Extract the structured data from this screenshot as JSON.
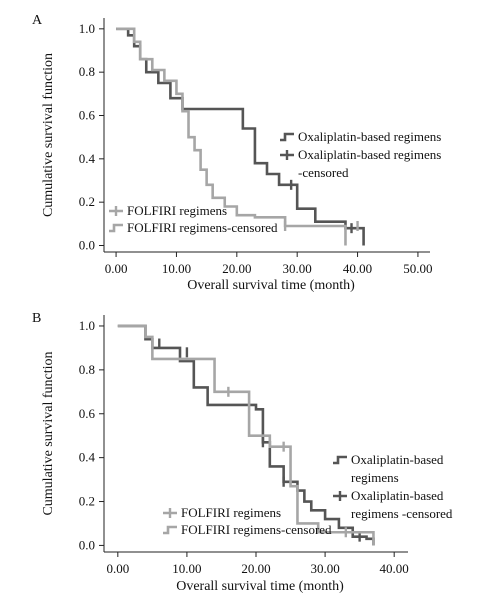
{
  "chart_data": [
    {
      "panel_label": "A",
      "type": "line",
      "step": true,
      "xlabel": "Overall survival time (month)",
      "ylabel": "Cumulative survival function",
      "xlim": [
        -2,
        52
      ],
      "ylim": [
        -0.03,
        1.05
      ],
      "xticks": [
        0,
        10,
        20,
        30,
        40,
        50
      ],
      "xtick_labels": [
        "0.00",
        "10.00",
        "20.00",
        "30.00",
        "40.00",
        "50.00"
      ],
      "yticks": [
        0,
        0.2,
        0.4,
        0.6,
        0.8,
        1.0
      ],
      "ytick_labels": [
        "0.0",
        "0.2",
        "0.4",
        "0.6",
        "0.8",
        "1.0"
      ],
      "grid": false,
      "legends": [
        {
          "placement": "right",
          "entries": [
            {
              "lines": [
                "Oxaliplatin-based regimens"
              ],
              "color": "#555555",
              "marker": "step"
            },
            {
              "lines": [
                "Oxaliplatin-based regimens",
                "-censored"
              ],
              "color": "#555555",
              "marker": "plus"
            }
          ]
        },
        {
          "placement": "bottom-left",
          "entries": [
            {
              "lines": [
                "FOLFIRI regimens"
              ],
              "color": "#a6a6a6",
              "marker": "plus"
            },
            {
              "lines": [
                "FOLFIRI regimens-censored"
              ],
              "color": "#a6a6a6",
              "marker": "step"
            }
          ]
        }
      ],
      "series": [
        {
          "name": "Oxaliplatin-based regimens",
          "color": "#555555",
          "x": [
            0,
            2,
            3,
            4,
            5,
            7,
            9,
            11,
            13,
            21,
            23,
            25,
            27,
            30,
            33,
            38,
            41
          ],
          "y": [
            1.0,
            0.97,
            0.92,
            0.86,
            0.8,
            0.75,
            0.68,
            0.63,
            0.63,
            0.54,
            0.38,
            0.33,
            0.28,
            0.17,
            0.11,
            0.08,
            0.0
          ],
          "censored": [
            [
              29,
              0.28
            ],
            [
              39,
              0.08
            ]
          ]
        },
        {
          "name": "FOLFIRI regimens",
          "color": "#a6a6a6",
          "x": [
            0,
            3,
            4,
            6,
            8,
            10,
            11,
            12,
            13,
            14,
            15,
            16,
            18,
            20,
            23,
            28,
            38
          ],
          "y": [
            1.0,
            0.94,
            0.86,
            0.81,
            0.76,
            0.7,
            0.62,
            0.5,
            0.44,
            0.35,
            0.28,
            0.22,
            0.18,
            0.14,
            0.13,
            0.09,
            0.0
          ],
          "censored": [
            [
              28,
              0.09
            ],
            [
              40,
              0.09
            ]
          ]
        }
      ]
    },
    {
      "panel_label": "B",
      "type": "line",
      "step": true,
      "xlabel": "Overall survival time (month)",
      "ylabel": "Cumulative survival function",
      "xlim": [
        -2,
        42
      ],
      "ylim": [
        -0.03,
        1.05
      ],
      "xticks": [
        0,
        10,
        20,
        30,
        40
      ],
      "xtick_labels": [
        "0.00",
        "10.00",
        "20.00",
        "30.00",
        "40.00"
      ],
      "yticks": [
        0,
        0.2,
        0.4,
        0.6,
        0.8,
        1.0
      ],
      "ytick_labels": [
        "0.0",
        "0.2",
        "0.4",
        "0.6",
        "0.8",
        "1.0"
      ],
      "grid": false,
      "legends": [
        {
          "placement": "right",
          "entries": [
            {
              "lines": [
                "Oxaliplatin-based",
                "regimens"
              ],
              "color": "#555555",
              "marker": "step"
            },
            {
              "lines": [
                "Oxaliplatin-based",
                "regimens -censored"
              ],
              "color": "#555555",
              "marker": "plus"
            }
          ]
        },
        {
          "placement": "bottom-left",
          "entries": [
            {
              "lines": [
                "FOLFIRI regimens"
              ],
              "color": "#a6a6a6",
              "marker": "plus"
            },
            {
              "lines": [
                "FOLFIRI regimens-censored"
              ],
              "color": "#a6a6a6",
              "marker": "step"
            }
          ]
        }
      ],
      "series": [
        {
          "name": "Oxaliplatin-based regimens",
          "color": "#555555",
          "x": [
            0,
            4,
            5,
            9,
            11,
            13,
            20,
            21,
            22,
            24,
            26,
            27,
            28,
            30,
            32,
            34,
            36,
            37
          ],
          "y": [
            1.0,
            0.94,
            0.9,
            0.84,
            0.72,
            0.64,
            0.62,
            0.47,
            0.36,
            0.29,
            0.25,
            0.2,
            0.16,
            0.12,
            0.08,
            0.04,
            0.03,
            0.0
          ],
          "censored": [
            [
              6,
              0.92
            ],
            [
              10,
              0.88
            ],
            [
              21,
              0.47
            ],
            [
              24,
              0.29
            ],
            [
              35,
              0.04
            ]
          ]
        },
        {
          "name": "FOLFIRI regimens",
          "color": "#a6a6a6",
          "x": [
            0,
            4,
            5,
            12,
            14,
            18,
            19,
            21,
            22,
            25,
            26,
            29,
            37
          ],
          "y": [
            1.0,
            0.95,
            0.85,
            0.85,
            0.7,
            0.7,
            0.5,
            0.5,
            0.45,
            0.27,
            0.1,
            0.06,
            0.0
          ],
          "censored": [
            [
              16,
              0.7
            ],
            [
              24,
              0.45
            ],
            [
              33,
              0.06
            ]
          ]
        }
      ]
    }
  ]
}
